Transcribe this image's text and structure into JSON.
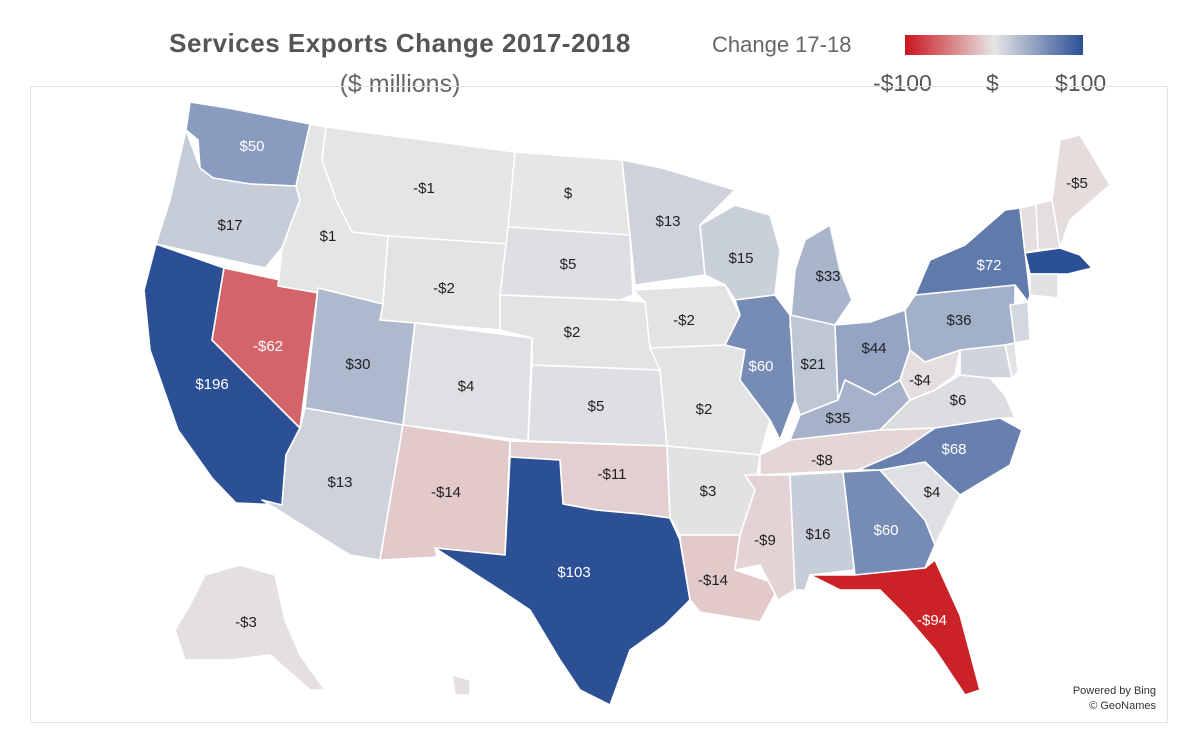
{
  "chart": {
    "title": "Services Exports Change 2017-2018",
    "subtitle": "($ millions)"
  },
  "legend": {
    "title": "Change 17-18",
    "min_label": "-$100",
    "mid_label": "$",
    "max_label": "$100",
    "colors": {
      "negative": "#c9151c",
      "neutral": "#e6e6e6",
      "positive": "#2c5095"
    }
  },
  "attribution": {
    "line1": "Powered by Bing",
    "line2": "© GeoNames"
  },
  "chart_data": {
    "type": "choropleth",
    "title": "Services Exports Change 2017-2018",
    "unit": "$ millions",
    "scale": {
      "min": -100,
      "mid": 0,
      "max": 100
    },
    "states": [
      {
        "id": "WA",
        "value": 50,
        "label": "$50"
      },
      {
        "id": "OR",
        "value": 17,
        "label": "$17"
      },
      {
        "id": "CA",
        "value": 196,
        "label": "$196"
      },
      {
        "id": "NV",
        "value": -62,
        "label": "-$62"
      },
      {
        "id": "ID",
        "value": 1,
        "label": "$1"
      },
      {
        "id": "MT",
        "value": -1,
        "label": "-$1"
      },
      {
        "id": "WY",
        "value": -2,
        "label": "-$2"
      },
      {
        "id": "UT",
        "value": 30,
        "label": "$30"
      },
      {
        "id": "AZ",
        "value": 13,
        "label": "$13"
      },
      {
        "id": "CO",
        "value": 4,
        "label": "$4"
      },
      {
        "id": "NM",
        "value": -14,
        "label": "-$14"
      },
      {
        "id": "ND",
        "value": 0,
        "label": "$"
      },
      {
        "id": "SD",
        "value": 5,
        "label": "$5"
      },
      {
        "id": "NE",
        "value": 2,
        "label": "$2"
      },
      {
        "id": "KS",
        "value": 5,
        "label": "$5"
      },
      {
        "id": "OK",
        "value": -11,
        "label": "-$11"
      },
      {
        "id": "TX",
        "value": 103,
        "label": "$103"
      },
      {
        "id": "MN",
        "value": 13,
        "label": "$13"
      },
      {
        "id": "IA",
        "value": -2,
        "label": "-$2"
      },
      {
        "id": "MO",
        "value": 2,
        "label": "$2"
      },
      {
        "id": "AR",
        "value": 3,
        "label": "$3"
      },
      {
        "id": "LA",
        "value": -14,
        "label": "-$14"
      },
      {
        "id": "WI",
        "value": 15,
        "label": "$15"
      },
      {
        "id": "IL",
        "value": 60,
        "label": "$60"
      },
      {
        "id": "MI",
        "value": 33,
        "label": "$33"
      },
      {
        "id": "IN",
        "value": 21,
        "label": "$21"
      },
      {
        "id": "OH",
        "value": 44,
        "label": "$44"
      },
      {
        "id": "KY",
        "value": 35,
        "label": "$35"
      },
      {
        "id": "TN",
        "value": -8,
        "label": "-$8"
      },
      {
        "id": "MS",
        "value": -9,
        "label": "-$9"
      },
      {
        "id": "AL",
        "value": 16,
        "label": "$16"
      },
      {
        "id": "GA",
        "value": 60,
        "label": "$60"
      },
      {
        "id": "FL",
        "value": -94,
        "label": "-$94"
      },
      {
        "id": "SC",
        "value": 4,
        "label": "$4"
      },
      {
        "id": "NC",
        "value": 68,
        "label": "$68"
      },
      {
        "id": "VA",
        "value": 6,
        "label": "$6"
      },
      {
        "id": "WV",
        "value": -4,
        "label": "-$4"
      },
      {
        "id": "PA",
        "value": 36,
        "label": "$36"
      },
      {
        "id": "NY",
        "value": 72,
        "label": "$72"
      },
      {
        "id": "ME",
        "value": -5,
        "label": "-$5"
      },
      {
        "id": "AK",
        "value": -3,
        "label": "-$3"
      },
      {
        "id": "NH",
        "value": -4
      },
      {
        "id": "VT",
        "value": -3
      },
      {
        "id": "MA",
        "value": 100
      },
      {
        "id": "CT",
        "value": 3
      },
      {
        "id": "NJ",
        "value": 10
      },
      {
        "id": "DE",
        "value": 2
      },
      {
        "id": "MD",
        "value": 12
      },
      {
        "id": "HI",
        "value": -3
      }
    ]
  }
}
